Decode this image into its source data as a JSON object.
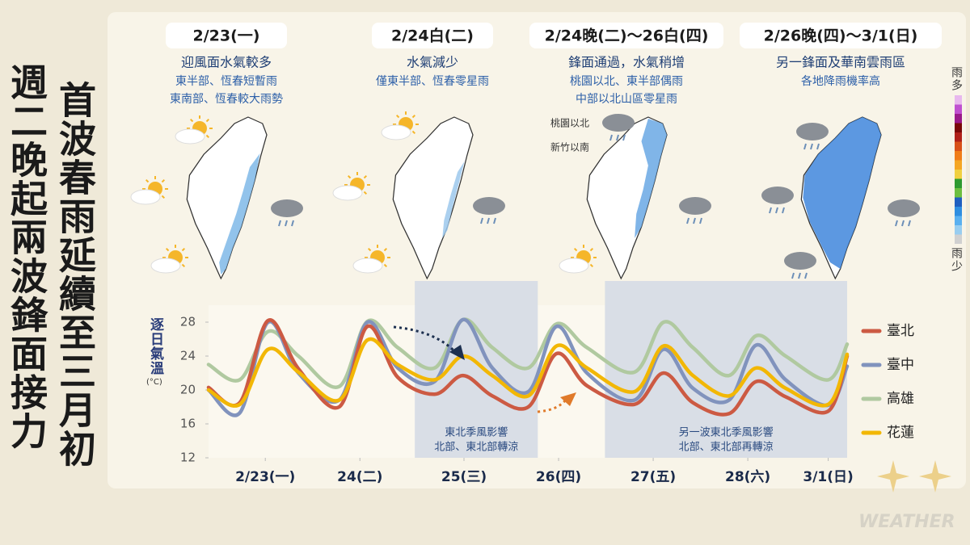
{
  "title_left": "週二晚起兩波鋒面接力",
  "title_right": "首波春雨延續至三月初",
  "panels": [
    {
      "date": "2/23(一)",
      "headline": "迎風面水氣較多",
      "lines": [
        "東半部、恆春短暫雨",
        "東南部、恆春較大雨勢"
      ]
    },
    {
      "date": "2/24白(二)",
      "headline": "水氣減少",
      "lines": [
        "僅東半部、恆春零星雨"
      ]
    },
    {
      "date": "2/24晚(二)～26白(四)",
      "headline": "鋒面通過，水氣稍增",
      "lines": [
        "桃園以北、東半部偶雨",
        "中部以北山區零星雨"
      ],
      "map_labels": [
        "桃園以北",
        "新竹以南"
      ]
    },
    {
      "date": "2/26晚(四)～3/1(日)",
      "headline": "另一鋒面及華南雲雨區",
      "lines": [
        "各地降雨機率高"
      ]
    }
  ],
  "rain_legend": {
    "top": "雨多",
    "bottom": "雨少"
  },
  "watermark": "WEATHER",
  "chart_data": {
    "type": "line",
    "y_label": "逐日氣溫",
    "y_unit": "(°C)",
    "x": [
      0,
      0.33,
      0.63,
      0.95,
      1.38,
      1.68,
      2.0,
      2.39,
      2.69,
      3.0,
      3.38,
      3.68,
      4.0,
      4.5,
      4.81,
      5.12,
      5.5,
      5.79,
      6.1,
      6.55,
      6.75
    ],
    "xlim": [
      0,
      6.75
    ],
    "ylim": [
      12,
      30
    ],
    "xticks": [
      {
        "value": 0.6,
        "label": "2/23(一)"
      },
      {
        "value": 1.6,
        "label": "24(二)"
      },
      {
        "value": 2.7,
        "label": "25(三)"
      },
      {
        "value": 3.7,
        "label": "26(四)"
      },
      {
        "value": 4.7,
        "label": "27(五)"
      },
      {
        "value": 5.7,
        "label": "28(六)"
      },
      {
        "value": 6.55,
        "label": "3/1(日)"
      }
    ],
    "yticks": [
      12,
      16,
      20,
      24,
      28
    ],
    "legend": "right",
    "series": [
      {
        "name": "臺北",
        "color": "#cc5a43",
        "values": [
          20.3,
          18.5,
          28.2,
          22.5,
          18.0,
          27.5,
          21.5,
          19.5,
          21.7,
          19.3,
          18.0,
          24.3,
          20.5,
          18.3,
          22.0,
          18.5,
          17.2,
          21.0,
          19.2,
          17.5,
          24.0
        ]
      },
      {
        "name": "臺中",
        "color": "#8193bd",
        "values": [
          20,
          17.3,
          28,
          22,
          18.8,
          28,
          22.6,
          21,
          28.3,
          22.6,
          19.8,
          27.5,
          22,
          18.8,
          24.8,
          20.2,
          18.8,
          25.3,
          21.2,
          18.2,
          22.8
        ]
      },
      {
        "name": "高雄",
        "color": "#b0c9a0",
        "values": [
          23,
          21.2,
          26.9,
          24,
          20.4,
          28.1,
          25,
          22.6,
          28.3,
          25,
          22.6,
          27.8,
          25,
          22.1,
          28,
          25,
          21.7,
          26.4,
          24,
          21.2,
          25.4
        ]
      },
      {
        "name": "花蓮",
        "color": "#f2b705",
        "values": [
          20,
          18.3,
          24.8,
          22.1,
          18.8,
          25.9,
          23,
          21.2,
          24,
          21.7,
          19.3,
          25.2,
          22.6,
          19.8,
          25.2,
          21.7,
          19.3,
          22.6,
          20.2,
          18.3,
          24.2
        ]
      }
    ],
    "annotations": [
      {
        "x": [
          2.18,
          3.48
        ],
        "lines": [
          "東北季風影響",
          "北部、東北部轉涼"
        ]
      },
      {
        "x": [
          4.19,
          6.75
        ],
        "lines": [
          "另一波東北季風影響",
          "北部、東北部再轉涼"
        ]
      }
    ]
  }
}
